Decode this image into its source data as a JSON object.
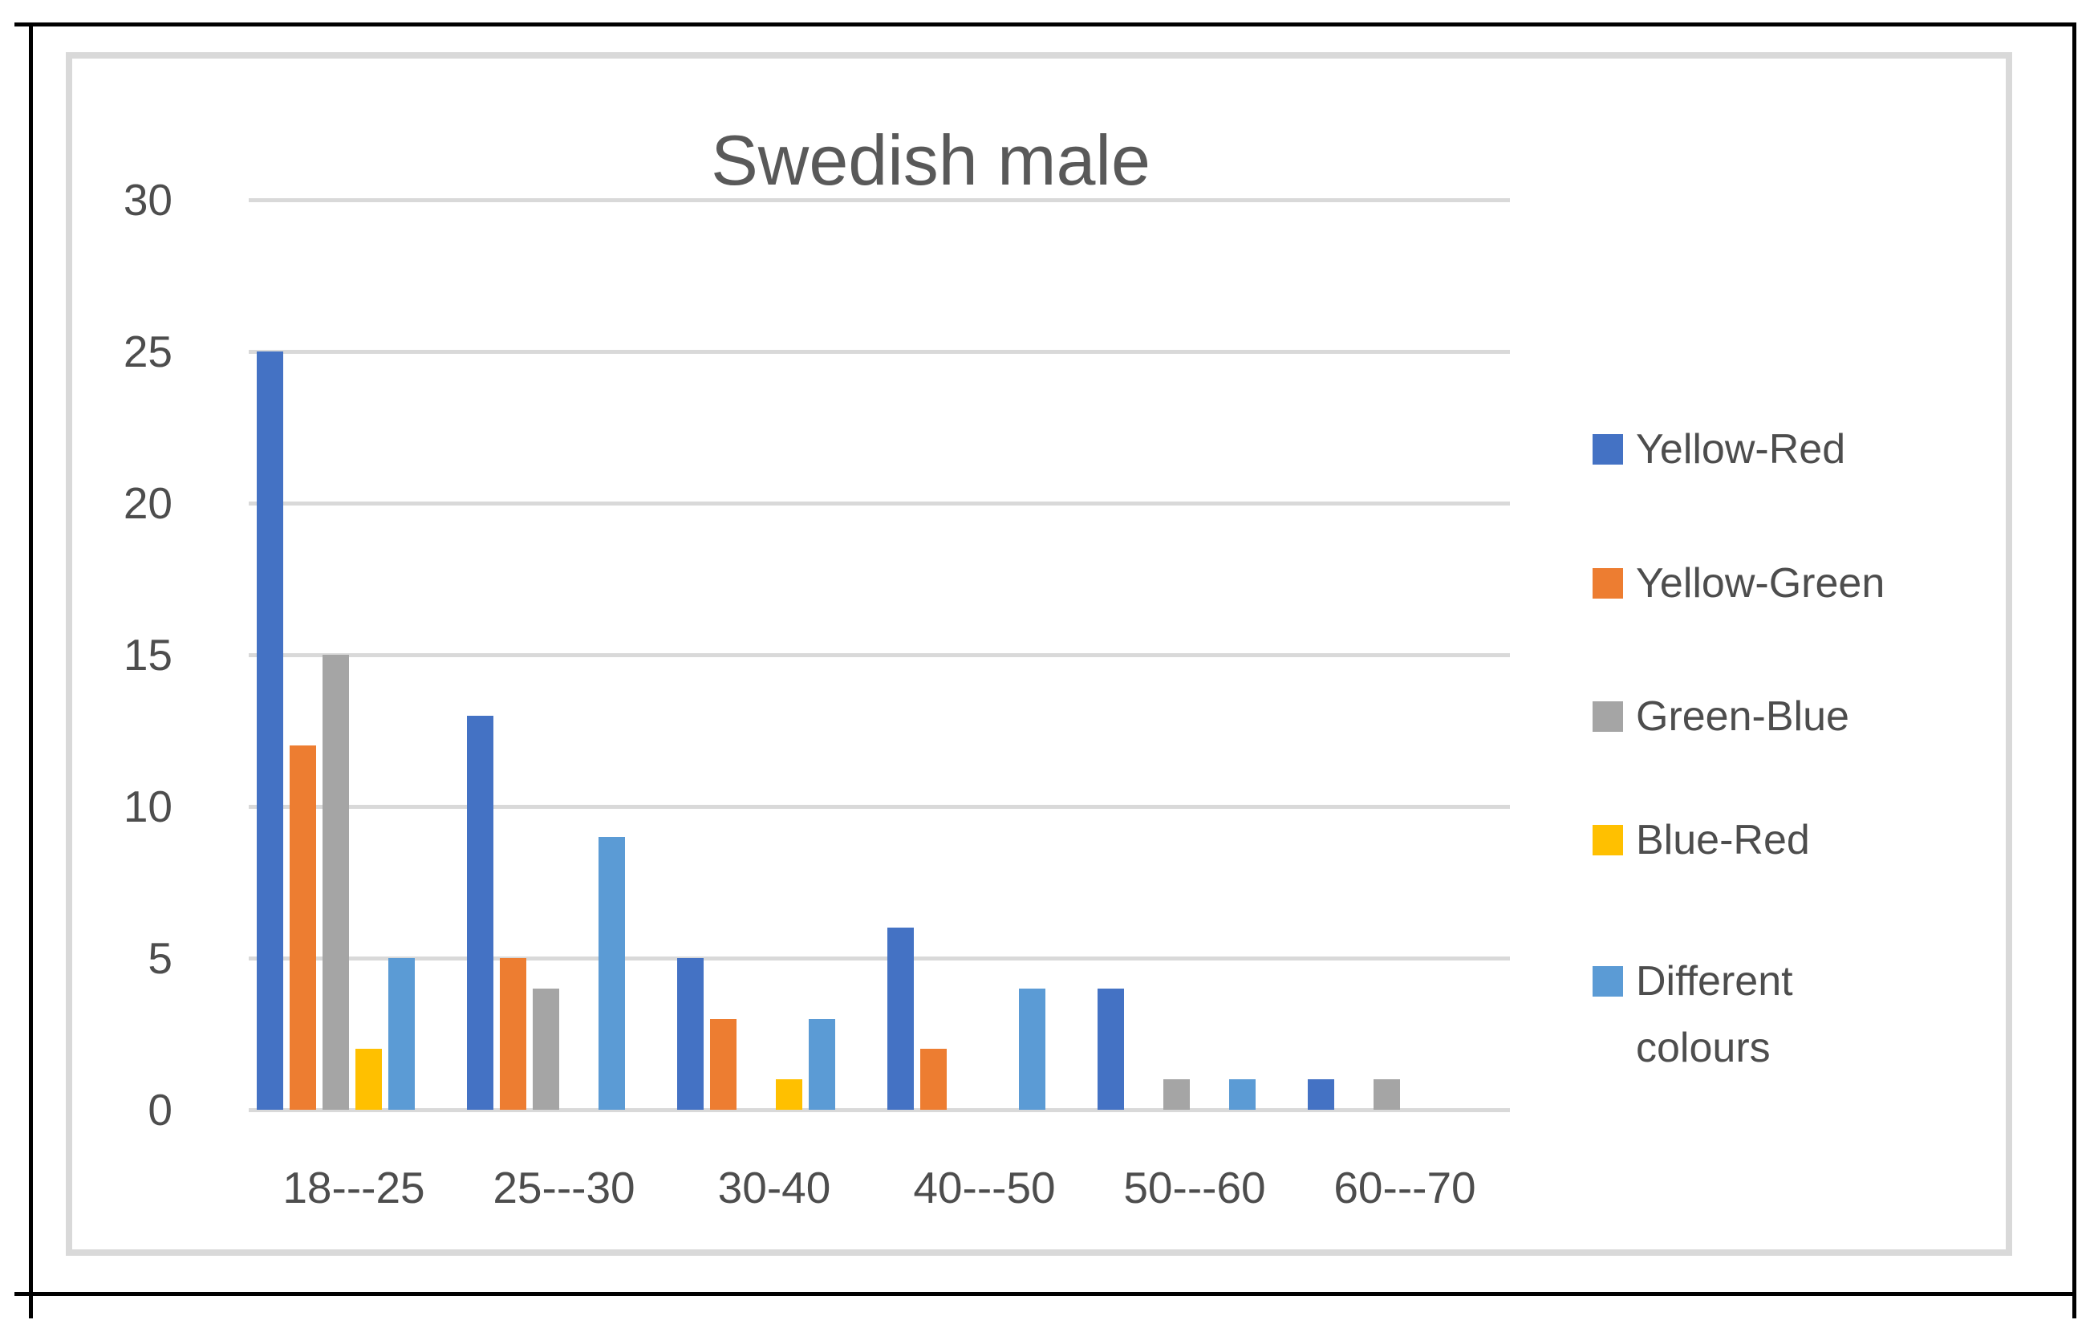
{
  "chart_data": {
    "type": "bar",
    "title": "Swedish male",
    "categories": [
      "18---25",
      "25---30",
      "30-40",
      "40---50",
      "50---60",
      "60---70"
    ],
    "series": [
      {
        "name": "Yellow-Red",
        "color": "#4472c4",
        "values": [
          25,
          13,
          5,
          6,
          4,
          1
        ]
      },
      {
        "name": "Yellow-Green",
        "color": "#ed7d31",
        "values": [
          12,
          5,
          3,
          2,
          0,
          0
        ]
      },
      {
        "name": "Green-Blue",
        "color": "#a5a5a5",
        "values": [
          15,
          4,
          0,
          0,
          1,
          1
        ]
      },
      {
        "name": "Blue-Red",
        "color": "#ffc000",
        "values": [
          2,
          0,
          1,
          0,
          0,
          0
        ]
      },
      {
        "name": "Different colours",
        "color": "#5b9bd5",
        "values": [
          5,
          9,
          3,
          4,
          1,
          0
        ]
      }
    ],
    "xlabel": "",
    "ylabel": "",
    "ylim": [
      0,
      30
    ],
    "yticks": [
      0,
      5,
      10,
      15,
      20,
      25,
      30
    ],
    "grid": true,
    "legend_position": "right"
  },
  "style": {
    "grid_color": "#d9d9d9",
    "chart_border_color": "#d9d9d9",
    "table_border_color": "#000000",
    "text_color": "#4d4d4d",
    "title_color": "#595959",
    "background": "#ffffff"
  }
}
